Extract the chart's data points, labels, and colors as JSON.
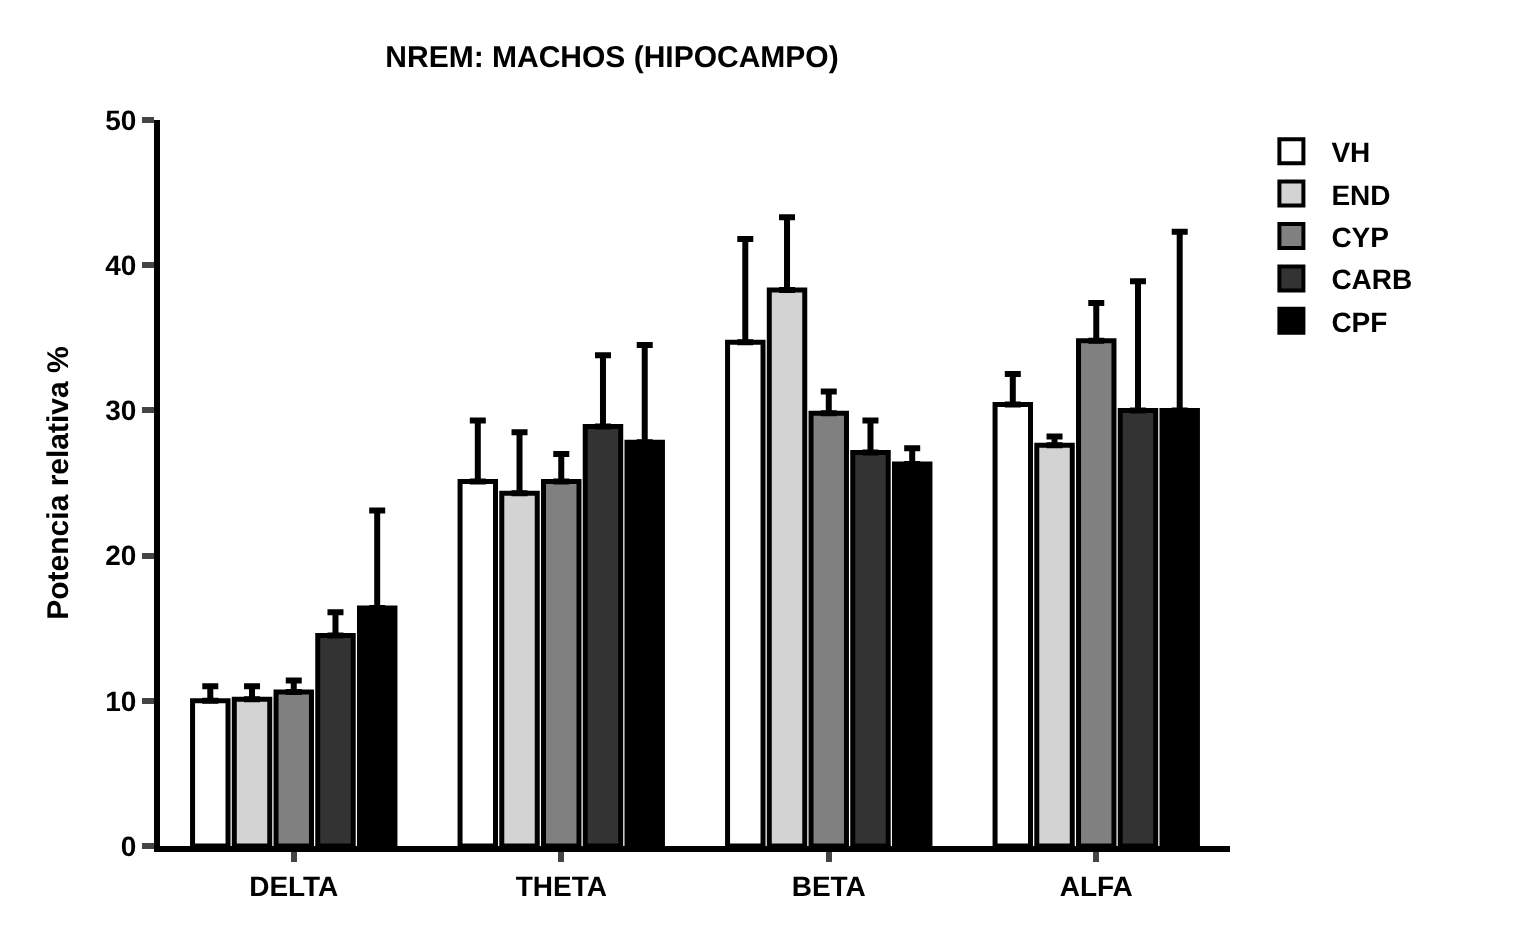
{
  "chart_data": {
    "type": "bar",
    "title": "NREM: MACHOS (HIPOCAMPO)",
    "ylabel": "Potencia relativa %",
    "categories": [
      "DELTA",
      "THETA",
      "BETA",
      "ALFA"
    ],
    "series": [
      {
        "name": "VH",
        "color": "#ffffff",
        "values": [
          10.0,
          25.1,
          34.7,
          30.4
        ],
        "errors": [
          [
            10.0,
            11.0
          ],
          [
            25.1,
            29.3
          ],
          [
            34.7,
            41.8
          ],
          [
            30.4,
            32.5
          ]
        ]
      },
      {
        "name": "END",
        "color": "#d3d3d3",
        "values": [
          10.1,
          24.3,
          38.3,
          27.6
        ],
        "errors": [
          [
            10.1,
            11.0
          ],
          [
            24.3,
            28.5
          ],
          [
            38.3,
            43.3
          ],
          [
            27.6,
            28.2
          ]
        ]
      },
      {
        "name": "CYP",
        "color": "#808080",
        "values": [
          10.6,
          25.1,
          29.8,
          34.8
        ],
        "errors": [
          [
            10.6,
            11.4
          ],
          [
            25.1,
            27.0
          ],
          [
            29.8,
            31.3
          ],
          [
            34.8,
            37.4
          ]
        ]
      },
      {
        "name": "CARB",
        "color": "#333333",
        "values": [
          14.5,
          28.9,
          27.1,
          30.0
        ],
        "errors": [
          [
            14.5,
            16.1
          ],
          [
            28.9,
            33.8
          ],
          [
            27.1,
            29.3
          ],
          [
            30.0,
            38.9
          ]
        ]
      },
      {
        "name": "CPF",
        "color": "#000000",
        "values": [
          16.4,
          27.8,
          26.3,
          30.0
        ],
        "errors": [
          [
            16.4,
            23.1
          ],
          [
            27.8,
            34.5
          ],
          [
            26.3,
            27.4
          ],
          [
            30.0,
            42.3
          ]
        ]
      }
    ],
    "ylim": [
      0,
      50
    ],
    "yticks": [
      0,
      10,
      20,
      30,
      40,
      50
    ],
    "legend": "top right"
  }
}
